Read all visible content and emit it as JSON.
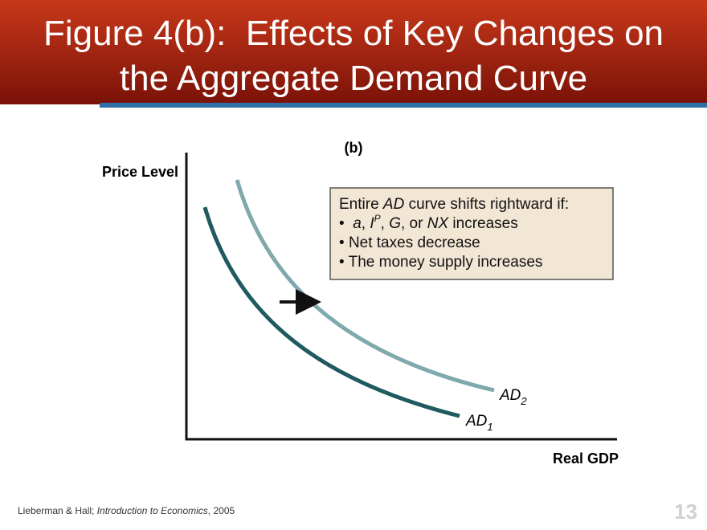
{
  "header": {
    "title_lines": [
      "Figure 4(b):  Effects of Key Changes on",
      "the Aggregate Demand Curve"
    ]
  },
  "diagram": {
    "panel_label": "(b)",
    "y_axis_label": "Price Level",
    "x_axis_label": "Real GDP",
    "box": {
      "lines": [
        [
          "Entire ",
          "AD",
          " curve shifts rightward if:"
        ],
        [
          "a",
          ", ",
          "I",
          "P",
          ", ",
          "G",
          ", or ",
          "NX",
          " increases"
        ],
        [
          "Net taxes decrease"
        ],
        [
          "The money supply increases"
        ]
      ]
    },
    "curve_labels": [
      [
        "AD",
        "2"
      ],
      [
        "AD",
        "1"
      ]
    ]
  },
  "footer": {
    "citation": [
      "Lieberman & Hall; ",
      "Introduction to Economics",
      ", 2005"
    ],
    "slide_number": 13
  }
}
